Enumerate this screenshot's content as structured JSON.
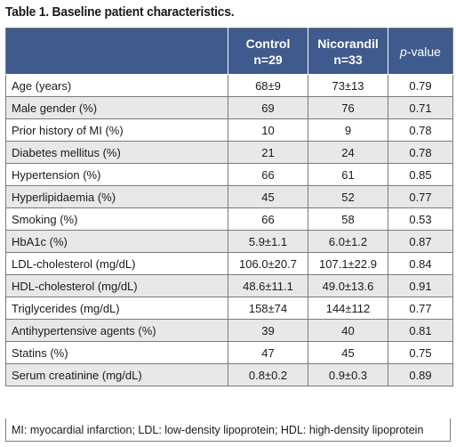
{
  "caption": "Table 1. Baseline patient characteristics.",
  "header": {
    "col0": "",
    "control": "Control",
    "control_n": "n=29",
    "nicorandil": "Nicorandil",
    "nicorandil_n": "n=33",
    "pvalue_p": "p",
    "pvalue_rest": "-value"
  },
  "rows": [
    {
      "label": "Age (years)",
      "control": "68±9",
      "nicorandil": "73±13",
      "p": "0.79"
    },
    {
      "label": "Male gender (%)",
      "control": "69",
      "nicorandil": "76",
      "p": "0.71"
    },
    {
      "label": "Prior history of MI (%)",
      "control": "10",
      "nicorandil": "9",
      "p": "0.78"
    },
    {
      "label": "Diabetes mellitus (%)",
      "control": "21",
      "nicorandil": "24",
      "p": "0.78"
    },
    {
      "label": "Hypertension (%)",
      "control": "66",
      "nicorandil": "61",
      "p": "0.85"
    },
    {
      "label": "Hyperlipidaemia (%)",
      "control": "45",
      "nicorandil": "52",
      "p": "0.77"
    },
    {
      "label": "Smoking (%)",
      "control": "66",
      "nicorandil": "58",
      "p": "0.53"
    },
    {
      "label": "HbA1c (%)",
      "control": "5.9±1.1",
      "nicorandil": "6.0±1.2",
      "p": "0.87"
    },
    {
      "label": "LDL-cholesterol (mg/dL)",
      "control": "106.0±20.7",
      "nicorandil": "107.1±22.9",
      "p": "0.84"
    },
    {
      "label": "HDL-cholesterol (mg/dL)",
      "control": "48.6±11.1",
      "nicorandil": "49.0±13.6",
      "p": "0.91"
    },
    {
      "label": "Triglycerides (mg/dL)",
      "control": "158±74",
      "nicorandil": "144±112",
      "p": "0.77"
    },
    {
      "label": "Antihypertensive agents (%)",
      "control": "39",
      "nicorandil": "40",
      "p": "0.81"
    },
    {
      "label": "Statins (%)",
      "control": "47",
      "nicorandil": "45",
      "p": "0.75"
    },
    {
      "label": "Serum creatinine (mg/dL)",
      "control": "0.8±0.2",
      "nicorandil": "0.9±0.3",
      "p": "0.89"
    }
  ],
  "footnote": "MI: myocardial infarction; LDL: low-density lipoprotein; HDL: high-density lipoprotein",
  "colors": {
    "header_bg": "#3f5a8c",
    "stripe": "#e8e8e8",
    "border": "#7a7a7a"
  }
}
